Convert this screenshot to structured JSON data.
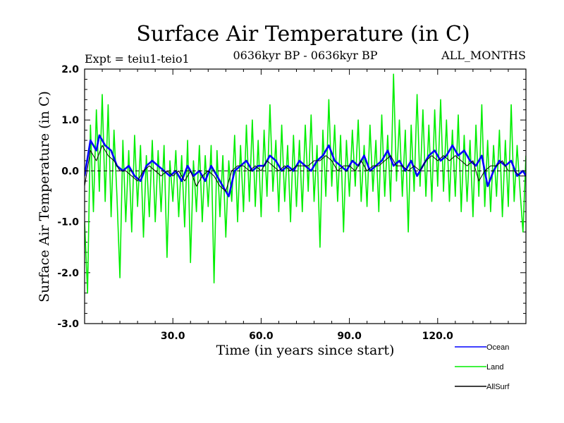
{
  "chart_data": {
    "type": "line",
    "title": "Surface Air Temperature (in C)",
    "subtitle_left": "Expt = teiu1-teio1",
    "subtitle_center": "0636kyr BP - 0636kyr BP",
    "subtitle_right": "ALL_MONTHS",
    "xlabel": "Time (in years since start)",
    "ylabel": "Surface Air Temperature (in C)",
    "xlim": [
      0,
      150
    ],
    "ylim": [
      -3.0,
      2.0
    ],
    "xticks": [
      {
        "value": 30,
        "label": "30.0"
      },
      {
        "value": 60,
        "label": "60.0"
      },
      {
        "value": 90,
        "label": "90.0"
      },
      {
        "value": 120,
        "label": "120.0"
      }
    ],
    "yticks": [
      {
        "value": 2.0,
        "label": "2.0"
      },
      {
        "value": 1.0,
        "label": "1.0"
      },
      {
        "value": 0.0,
        "label": "0.0"
      },
      {
        "value": -1.0,
        "label": "-1.0"
      },
      {
        "value": -2.0,
        "label": "-2.0"
      },
      {
        "value": -3.0,
        "label": "-3.0"
      }
    ],
    "zero_line": 0.0,
    "series": [
      {
        "name": "Ocean",
        "color": "#0000ff",
        "x": [
          0,
          2,
          4,
          5,
          7,
          9,
          11,
          13,
          15,
          17,
          19,
          21,
          23,
          25,
          27,
          29,
          31,
          33,
          35,
          37,
          39,
          41,
          43,
          45,
          47,
          49,
          51,
          53,
          55,
          57,
          59,
          61,
          63,
          65,
          67,
          69,
          71,
          73,
          75,
          77,
          79,
          81,
          83,
          85,
          87,
          89,
          91,
          93,
          95,
          97,
          99,
          101,
          103,
          105,
          107,
          109,
          111,
          113,
          115,
          117,
          119,
          121,
          123,
          125,
          127,
          129,
          131,
          133,
          135,
          137,
          139,
          141,
          143,
          145,
          147,
          149,
          150
        ],
        "values": [
          -0.1,
          0.6,
          0.4,
          0.7,
          0.5,
          0.4,
          0.1,
          0.0,
          0.1,
          -0.1,
          -0.2,
          0.1,
          0.2,
          0.1,
          0.0,
          -0.1,
          0.0,
          -0.2,
          0.1,
          -0.1,
          0.0,
          -0.2,
          0.1,
          -0.1,
          -0.3,
          -0.5,
          0.0,
          0.1,
          0.2,
          0.0,
          0.1,
          0.1,
          0.3,
          0.2,
          0.0,
          0.1,
          0.0,
          0.2,
          0.1,
          0.0,
          0.2,
          0.3,
          0.5,
          0.2,
          0.1,
          0.0,
          0.2,
          0.1,
          0.3,
          0.0,
          0.1,
          0.2,
          0.4,
          0.1,
          0.2,
          0.0,
          0.2,
          -0.1,
          0.1,
          0.3,
          0.4,
          0.2,
          0.3,
          0.5,
          0.3,
          0.4,
          0.2,
          0.1,
          0.3,
          -0.3,
          0.0,
          0.2,
          0.1,
          0.2,
          -0.1,
          0.0,
          -0.1
        ]
      },
      {
        "name": "Land",
        "color": "#00ee00",
        "x": [
          0,
          1,
          2,
          3,
          4,
          5,
          6,
          7,
          8,
          9,
          10,
          11,
          12,
          13,
          14,
          15,
          16,
          17,
          18,
          19,
          20,
          21,
          22,
          23,
          24,
          25,
          26,
          27,
          28,
          29,
          30,
          31,
          32,
          33,
          34,
          35,
          36,
          37,
          38,
          39,
          40,
          41,
          42,
          43,
          44,
          45,
          46,
          47,
          48,
          49,
          50,
          51,
          52,
          53,
          54,
          55,
          56,
          57,
          58,
          59,
          60,
          61,
          62,
          63,
          64,
          65,
          66,
          67,
          68,
          69,
          70,
          71,
          72,
          73,
          74,
          75,
          76,
          77,
          78,
          79,
          80,
          81,
          82,
          83,
          84,
          85,
          86,
          87,
          88,
          89,
          90,
          91,
          92,
          93,
          94,
          95,
          96,
          97,
          98,
          99,
          100,
          101,
          102,
          103,
          104,
          105,
          106,
          107,
          108,
          109,
          110,
          111,
          112,
          113,
          114,
          115,
          116,
          117,
          118,
          119,
          120,
          121,
          122,
          123,
          124,
          125,
          126,
          127,
          128,
          129,
          130,
          131,
          132,
          133,
          134,
          135,
          136,
          137,
          138,
          139,
          140,
          141,
          142,
          143,
          144,
          145,
          146,
          147,
          148,
          149,
          150
        ],
        "values": [
          -1.0,
          -2.4,
          0.9,
          -0.8,
          1.2,
          -0.4,
          1.5,
          -0.6,
          1.3,
          -0.9,
          0.8,
          -0.5,
          -2.1,
          0.6,
          -1.0,
          0.4,
          -1.2,
          0.7,
          -0.7,
          0.5,
          -1.3,
          0.3,
          -0.9,
          0.6,
          -1.0,
          0.4,
          -0.8,
          0.5,
          -1.7,
          0.2,
          -0.6,
          0.4,
          -0.9,
          0.3,
          -1.1,
          0.6,
          -1.8,
          0.2,
          -0.8,
          0.5,
          -1.0,
          0.3,
          -0.7,
          0.5,
          -2.2,
          0.4,
          -0.9,
          0.3,
          -1.3,
          0.2,
          -0.6,
          0.7,
          -1.0,
          0.5,
          -0.8,
          0.9,
          -0.6,
          1.0,
          -0.7,
          0.6,
          -0.9,
          0.8,
          -0.5,
          1.3,
          -0.4,
          0.6,
          -0.8,
          0.9,
          -0.6,
          0.5,
          -1.0,
          0.7,
          -0.7,
          0.6,
          -0.8,
          0.9,
          -0.4,
          1.1,
          -0.6,
          0.5,
          -1.5,
          0.8,
          -0.5,
          1.4,
          -0.3,
          0.9,
          -0.6,
          0.7,
          -1.2,
          0.6,
          -0.5,
          0.8,
          -0.3,
          1.0,
          -0.6,
          0.5,
          -0.7,
          0.9,
          -0.4,
          0.6,
          -0.8,
          1.1,
          -0.5,
          0.7,
          -0.6,
          1.9,
          -0.2,
          1.0,
          -0.5,
          0.8,
          -1.2,
          0.9,
          -0.4,
          1.5,
          -0.3,
          1.2,
          -0.5,
          0.9,
          -0.6,
          1.2,
          -0.3,
          1.4,
          -0.4,
          1.0,
          -0.6,
          0.8,
          -0.5,
          1.1,
          -0.8,
          0.7,
          -0.6,
          0.6,
          -0.9,
          0.9,
          -0.5,
          1.3,
          -0.7,
          0.6,
          -0.8,
          0.5,
          -0.5,
          0.8,
          -0.9,
          0.6,
          -0.7,
          1.3,
          -0.6,
          0.5,
          -0.4,
          -1.2,
          0.3
        ]
      },
      {
        "name": "AllSurf",
        "color": "#000000",
        "x": [
          0,
          2,
          4,
          6,
          8,
          10,
          12,
          14,
          16,
          18,
          20,
          22,
          24,
          26,
          28,
          30,
          32,
          34,
          36,
          38,
          40,
          42,
          44,
          46,
          48,
          50,
          52,
          54,
          56,
          58,
          60,
          62,
          64,
          66,
          68,
          70,
          72,
          74,
          76,
          78,
          80,
          82,
          84,
          86,
          88,
          90,
          92,
          94,
          96,
          98,
          100,
          102,
          104,
          106,
          108,
          110,
          112,
          114,
          116,
          118,
          120,
          122,
          124,
          126,
          128,
          130,
          132,
          134,
          136,
          138,
          140,
          142,
          144,
          146,
          148,
          150
        ],
        "values": [
          -0.3,
          0.4,
          0.2,
          0.5,
          0.3,
          0.2,
          0.0,
          0.0,
          -0.1,
          -0.2,
          0.0,
          0.1,
          0.0,
          -0.1,
          0.0,
          -0.1,
          0.0,
          -0.2,
          0.0,
          -0.3,
          -0.1,
          0.0,
          -0.1,
          -0.3,
          -0.4,
          0.0,
          0.1,
          0.1,
          0.0,
          0.1,
          0.0,
          0.2,
          0.1,
          0.0,
          0.1,
          0.0,
          0.1,
          0.1,
          0.1,
          0.2,
          0.2,
          0.3,
          0.2,
          0.0,
          0.1,
          0.1,
          0.0,
          0.2,
          0.0,
          0.1,
          0.1,
          0.2,
          0.3,
          0.1,
          0.1,
          0.0,
          0.1,
          0.0,
          0.2,
          0.3,
          0.2,
          0.3,
          0.2,
          0.3,
          0.2,
          0.1,
          0.2,
          -0.2,
          0.0,
          0.1,
          0.1,
          0.2,
          0.0,
          0.0,
          -0.1,
          -0.1
        ]
      }
    ],
    "legend": [
      "Ocean",
      "Land",
      "AllSurf"
    ],
    "legend_position": "bottom-right"
  }
}
